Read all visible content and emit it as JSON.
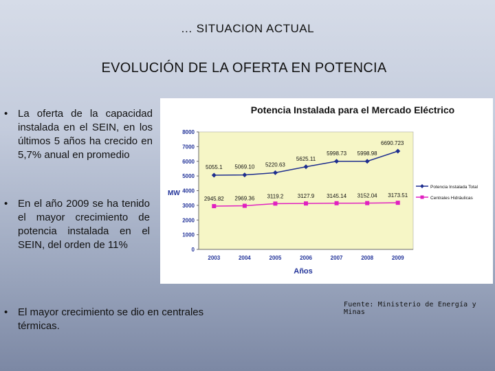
{
  "header": {
    "section_label": "… SITUACION ACTUAL",
    "title": "EVOLUCIÓN DE LA OFERTA EN POTENCIA"
  },
  "bullets": [
    {
      "marker": "•",
      "text": "La oferta de la capacidad instalada en el SEIN, en los últimos 5 años ha crecido en 5,7% anual en promedio"
    },
    {
      "marker": "•",
      "text": "En el año 2009 se ha tenido el mayor crecimiento de potencia instalada en el SEIN, del orden de 11%"
    },
    {
      "marker": "•",
      "text": "El mayor crecimiento se dio en centrales térmicas."
    }
  ],
  "source": "Fuente: Ministerio de Energía y Minas",
  "colors": {
    "series_total": "#1f2f8f",
    "series_hydro": "#e020c0",
    "plot_bg": "#f6f6c6",
    "axis_text": "#223399",
    "title_text": "#111111"
  },
  "chart_data": {
    "type": "line",
    "title": "Potencia Instalada para el Mercado Eléctrico",
    "xlabel": "Años",
    "ylabel": "MW",
    "ylim": [
      0,
      8000
    ],
    "yticks": [
      0,
      1000,
      2000,
      3000,
      4000,
      5000,
      6000,
      7000,
      8000
    ],
    "categories": [
      "2003",
      "2004",
      "2005",
      "2006",
      "2007",
      "2008",
      "2009"
    ],
    "grid": false,
    "legend_position": "right",
    "series": [
      {
        "name": "Potencia Instalada Total",
        "values": [
          5055.1,
          5069.1,
          5220.63,
          5625.11,
          5998.73,
          5998.98,
          6690.723
        ],
        "labels": [
          "5055.1",
          "5069.10",
          "5220.63",
          "5625.11",
          "5998.73",
          "5998.98",
          "6690.723"
        ]
      },
      {
        "name": "Centrales Hidráulicas",
        "values": [
          2945.82,
          2969.36,
          3119.2,
          3127.9,
          3145.14,
          3152.04,
          3173.51
        ],
        "labels": [
          "2945.82",
          "2969.36",
          "3119.2",
          "3127.9",
          "3145.14",
          "3152.04",
          "3173.51"
        ]
      }
    ]
  }
}
